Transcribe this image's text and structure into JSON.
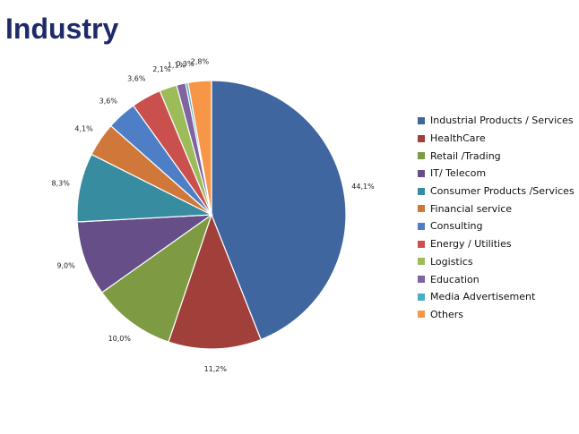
{
  "title": "Industry",
  "chart_data": {
    "type": "pie",
    "title": "",
    "start_angle_deg": 0,
    "direction": "clockwise",
    "slices": [
      {
        "label": "Industrial Products / Services",
        "value": 44.1,
        "display": "44,1%",
        "color": "#3f669e"
      },
      {
        "label": "HealthCare",
        "value": 11.2,
        "display": "11,2%",
        "color": "#a13f3b"
      },
      {
        "label": "Retail /Trading",
        "value": 10.0,
        "display": "10,0%",
        "color": "#7e9b44"
      },
      {
        "label": " IT/ Telecom",
        "value": 9.0,
        "display": "9,0%",
        "color": "#664f88"
      },
      {
        "label": "Consumer Products /Services",
        "value": 8.3,
        "display": "8,3%",
        "color": "#378ca0"
      },
      {
        "label": "Financial service",
        "value": 4.1,
        "display": "4,1%",
        "color": "#d0783a"
      },
      {
        "label": "Consulting",
        "value": 3.6,
        "display": "3,6%",
        "color": "#4e7fc6"
      },
      {
        "label": "Energy / Utilities",
        "value": 3.6,
        "display": "3,6%",
        "color": "#c9504c"
      },
      {
        "label": "Logistics",
        "value": 2.1,
        "display": "2,1%",
        "color": "#9cbb59"
      },
      {
        "label": "Education",
        "value": 1.1,
        "display": "1,1%",
        "color": "#8064a2"
      },
      {
        "label": "Media Advertisement",
        "value": 0.3,
        "display": "0,3%",
        "color": "#4bacc6"
      },
      {
        "label": "Others",
        "value": 2.8,
        "display": "2,8%",
        "color": "#f79646"
      }
    ],
    "legend_position": "right"
  }
}
